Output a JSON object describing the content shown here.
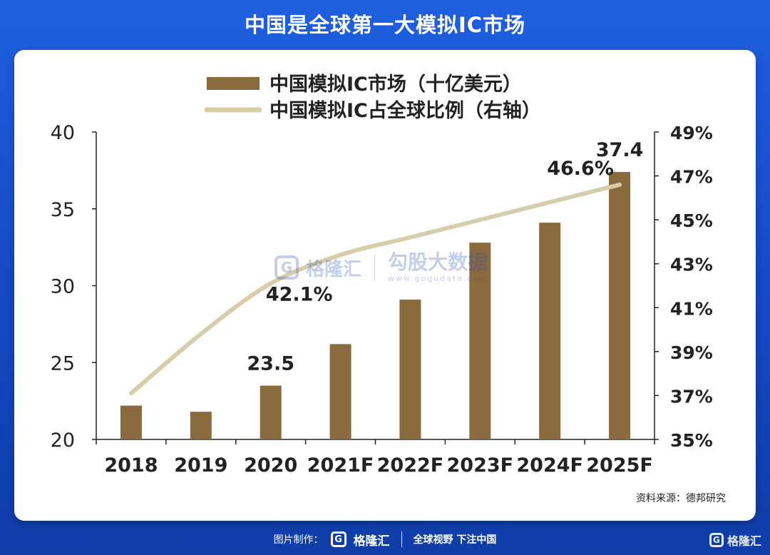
{
  "header": {
    "title": "中国是全球第一大模拟IC市场"
  },
  "chart_data": {
    "type": "bar+line",
    "categories": [
      "2018",
      "2019",
      "2020",
      "2021F",
      "2022F",
      "2023F",
      "2024F",
      "2025F"
    ],
    "series": [
      {
        "name": "中国模拟IC市场（十亿美元）",
        "type": "bar",
        "axis": "left",
        "color": "#8b6a3e",
        "values": [
          22.2,
          21.8,
          23.5,
          26.2,
          29.1,
          32.8,
          34.1,
          37.4
        ]
      },
      {
        "name": "中国模拟IC占全球比例（右轴）",
        "type": "line",
        "axis": "right",
        "color": "#d8cda9",
        "values": [
          37.1,
          39.8,
          42.1,
          43.4,
          44.2,
          45.0,
          45.8,
          46.6
        ]
      }
    ],
    "left_axis": {
      "min": 20,
      "max": 40,
      "ticks": [
        "20",
        "25",
        "30",
        "35",
        "40"
      ]
    },
    "right_axis": {
      "min": 35,
      "max": 49,
      "ticks": [
        "35%",
        "37%",
        "39%",
        "41%",
        "43%",
        "45%",
        "47%",
        "49%"
      ]
    },
    "annotations": [
      {
        "text": "23.5",
        "series": 0,
        "index": 2
      },
      {
        "text": "37.4",
        "series": 0,
        "index": 7
      },
      {
        "text": "42.1%",
        "series": 1,
        "index": 2
      },
      {
        "text": "46.6%",
        "series": 1,
        "index": 7
      }
    ],
    "grid": false,
    "legend": "top-center"
  },
  "source": "资料来源：德邦研究",
  "watermark": {
    "brand": "格隆汇",
    "name": "勾股大数据",
    "url": "www.gogudata.com"
  },
  "footer": {
    "label": "图片制作：",
    "brand": "格隆汇",
    "slogan": "全球视野 下注中国"
  },
  "logos": {
    "icon_letter": "G"
  }
}
